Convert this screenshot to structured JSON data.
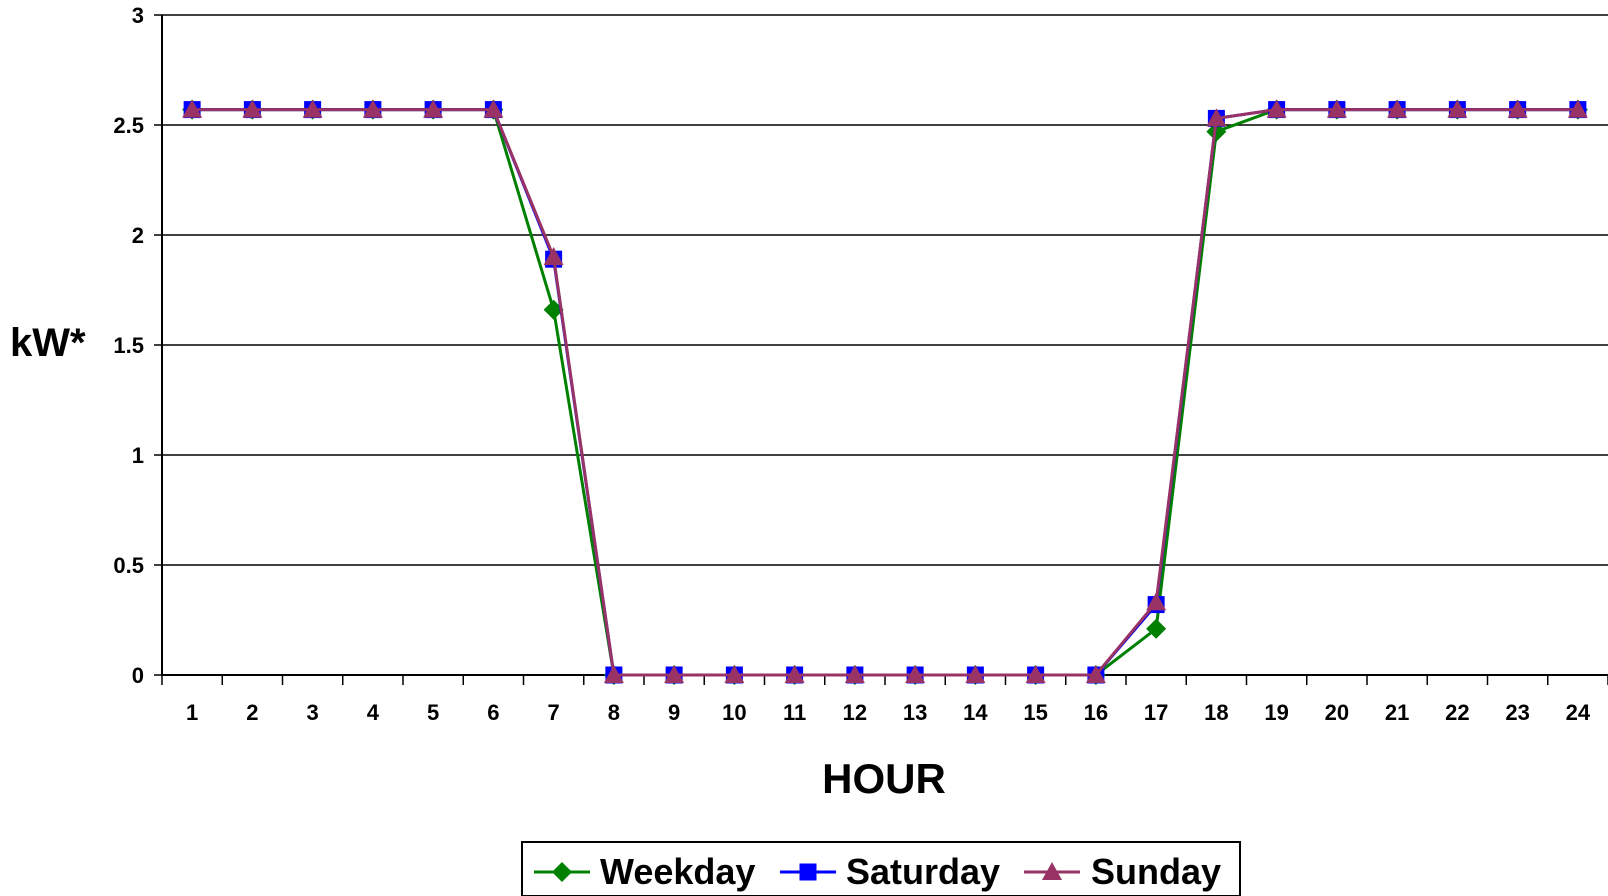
{
  "chart_data": {
    "type": "line",
    "title": "",
    "xlabel": "HOUR",
    "ylabel": "kW*",
    "ylim": [
      0,
      3
    ],
    "yticks": [
      "0",
      "0.5",
      "1",
      "1.5",
      "2",
      "2.5",
      "3"
    ],
    "grid": true,
    "legend_position": "bottom",
    "categories": [
      "1",
      "2",
      "3",
      "4",
      "5",
      "6",
      "7",
      "8",
      "9",
      "10",
      "11",
      "12",
      "13",
      "14",
      "15",
      "16",
      "17",
      "18",
      "19",
      "20",
      "21",
      "22",
      "23",
      "24"
    ],
    "series": [
      {
        "name": "Weekday",
        "color": "#008000",
        "marker": "diamond",
        "values": [
          2.57,
          2.57,
          2.57,
          2.57,
          2.57,
          2.57,
          1.66,
          0,
          0,
          0,
          0,
          0,
          0,
          0,
          0,
          0,
          0.21,
          2.47,
          2.57,
          2.57,
          2.57,
          2.57,
          2.57,
          2.57
        ]
      },
      {
        "name": "Saturday",
        "color": "#0000ff",
        "marker": "square",
        "values": [
          2.57,
          2.57,
          2.57,
          2.57,
          2.57,
          2.57,
          1.89,
          0,
          0,
          0,
          0,
          0,
          0,
          0,
          0,
          0,
          0.32,
          2.53,
          2.57,
          2.57,
          2.57,
          2.57,
          2.57,
          2.57
        ]
      },
      {
        "name": "Sunday",
        "color": "#993366",
        "marker": "triangle",
        "values": [
          2.57,
          2.57,
          2.57,
          2.57,
          2.57,
          2.57,
          1.9,
          0,
          0,
          0,
          0,
          0,
          0,
          0,
          0,
          0,
          0.33,
          2.53,
          2.57,
          2.57,
          2.57,
          2.57,
          2.57,
          2.57
        ]
      }
    ]
  }
}
